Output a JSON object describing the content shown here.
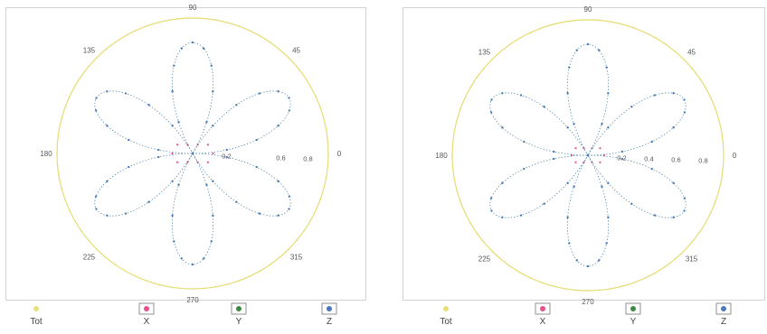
{
  "chart_data": [
    {
      "type": "polar-scatter",
      "title": "",
      "angle_labels": [
        "90",
        "45",
        "0",
        "315",
        "270",
        "225",
        "180",
        "135"
      ],
      "angles_deg": [
        90,
        45,
        0,
        315,
        270,
        225,
        180,
        135
      ],
      "radial_tick_labels": [
        "0.2",
        "0.6",
        "0.8"
      ],
      "radial_ticks": [
        0.2,
        0.6,
        0.8
      ],
      "r_max": 1.0,
      "series": [
        {
          "name": "Tot",
          "color": "#e8e07a",
          "pattern": "circle",
          "r": 1.0,
          "points": 72
        },
        {
          "name": "X",
          "color": "#e8508a",
          "pattern": "dipole",
          "axis_deg": 0,
          "r": 0.15,
          "points": 12
        },
        {
          "name": "Y",
          "color": "#3a8a44",
          "pattern": "rose3",
          "phase_deg": 90,
          "r": 0.82,
          "points": 60
        },
        {
          "name": "Z",
          "color": "#4a78c0",
          "pattern": "rose3",
          "phase_deg": 30,
          "r": 0.82,
          "points": 60
        }
      ],
      "legend": [
        "Tot",
        "X",
        "Y",
        "Z"
      ],
      "legend_position": "bottom"
    },
    {
      "type": "polar-scatter",
      "title": "",
      "angle_labels": [
        "90",
        "45",
        "0",
        "315",
        "270",
        "225",
        "180",
        "135"
      ],
      "angles_deg": [
        90,
        45,
        0,
        315,
        270,
        225,
        180,
        135
      ],
      "radial_tick_labels": [
        "0.2",
        "0.4",
        "0.6",
        "0.8"
      ],
      "radial_ticks": [
        0.2,
        0.4,
        0.6,
        0.8
      ],
      "r_max": 1.0,
      "series": [
        {
          "name": "Tot",
          "color": "#e8e07a",
          "pattern": "circle",
          "r": 1.0,
          "points": 72
        },
        {
          "name": "X",
          "color": "#e8508a",
          "pattern": "dipole",
          "axis_deg": 0,
          "r": 0.12,
          "points": 12
        },
        {
          "name": "Y",
          "color": "#3a8a44",
          "pattern": "rose3",
          "phase_deg": 90,
          "r": 0.82,
          "points": 60
        },
        {
          "name": "Z",
          "color": "#4a78c0",
          "pattern": "rose3",
          "phase_deg": 30,
          "r": 0.82,
          "points": 60
        }
      ],
      "legend": [
        "Tot",
        "X",
        "Y",
        "Z"
      ],
      "legend_position": "bottom"
    }
  ]
}
